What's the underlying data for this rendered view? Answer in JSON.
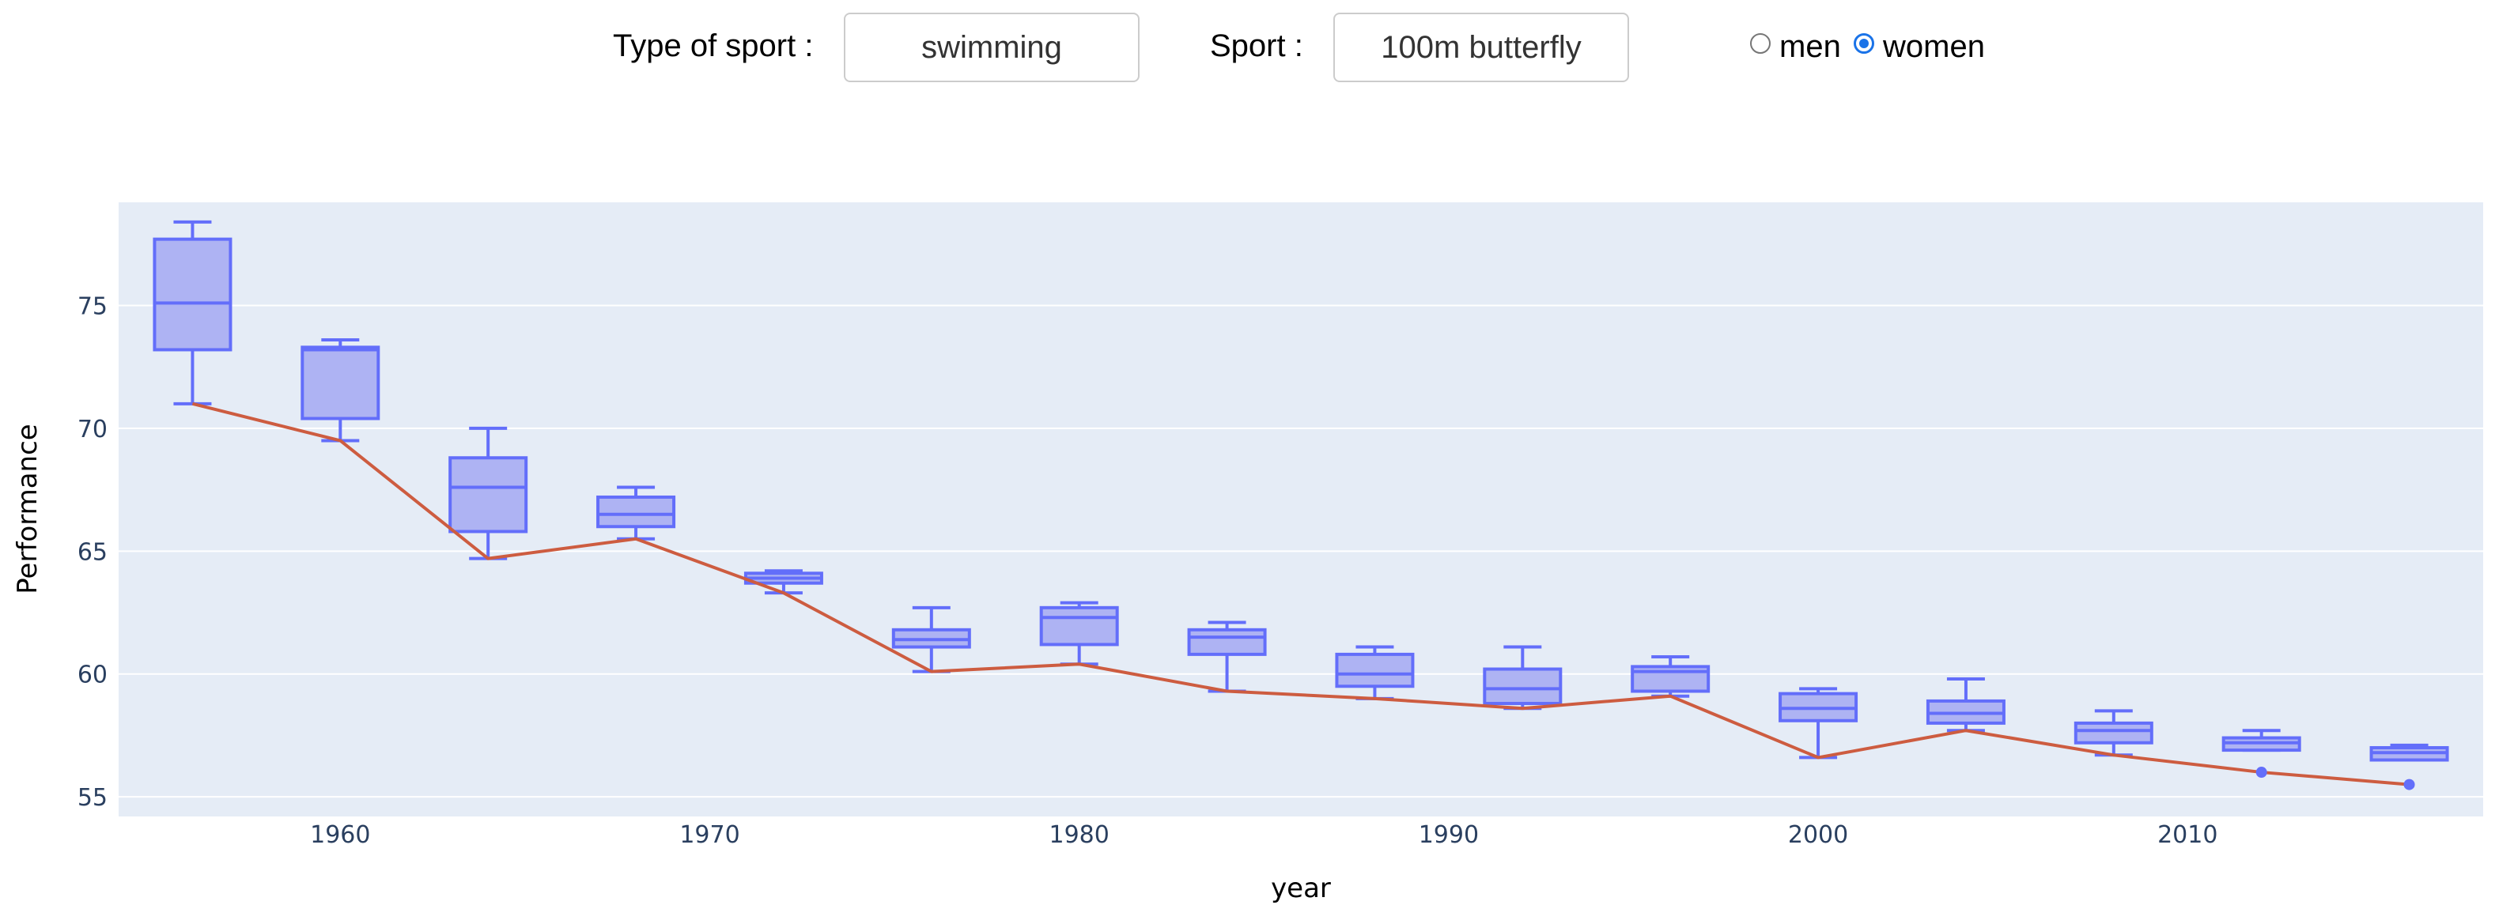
{
  "controls": {
    "type_label": "Type of sport :",
    "type_value": "swimming",
    "sport_label": "Sport :",
    "sport_value": "100m butterfly",
    "gender_options": [
      {
        "label": "men",
        "checked": false
      },
      {
        "label": "women",
        "checked": true
      }
    ]
  },
  "chart_data": {
    "type": "box",
    "xlabel": "year",
    "ylabel": "Performance",
    "xlim": [
      1954,
      2018
    ],
    "ylim": [
      54.2,
      79.2
    ],
    "xticks": [
      1960,
      1970,
      1980,
      1990,
      2000,
      2010
    ],
    "yticks": [
      55,
      60,
      65,
      70,
      75
    ],
    "grid": true,
    "legend": "none",
    "colors": {
      "box_line": "#636efa",
      "box_fill": "#aeb3f3",
      "line": "#cd5c40",
      "plot_bg": "#e5ecf6",
      "grid": "#ffffff",
      "axis_text": "#2a3f5f"
    },
    "boxes": [
      {
        "x": 1956,
        "min": 71.0,
        "q1": 73.2,
        "median": 75.1,
        "q3": 77.7,
        "max": 78.4
      },
      {
        "x": 1960,
        "min": 69.5,
        "q1": 70.4,
        "median": 73.2,
        "q3": 73.3,
        "max": 73.6
      },
      {
        "x": 1964,
        "min": 64.7,
        "q1": 65.8,
        "median": 67.6,
        "q3": 68.8,
        "max": 70.0
      },
      {
        "x": 1968,
        "min": 65.5,
        "q1": 66.0,
        "median": 66.5,
        "q3": 67.2,
        "max": 67.6
      },
      {
        "x": 1972,
        "min": 63.3,
        "q1": 63.7,
        "median": 63.9,
        "q3": 64.1,
        "max": 64.2
      },
      {
        "x": 1976,
        "min": 60.1,
        "q1": 61.1,
        "median": 61.4,
        "q3": 61.8,
        "max": 62.7
      },
      {
        "x": 1980,
        "min": 60.4,
        "q1": 61.2,
        "median": 62.3,
        "q3": 62.7,
        "max": 62.9
      },
      {
        "x": 1984,
        "min": 59.3,
        "q1": 60.8,
        "median": 61.5,
        "q3": 61.8,
        "max": 62.1
      },
      {
        "x": 1988,
        "min": 59.0,
        "q1": 59.5,
        "median": 60.0,
        "q3": 60.8,
        "max": 61.1
      },
      {
        "x": 1992,
        "min": 58.6,
        "q1": 58.8,
        "median": 59.4,
        "q3": 60.2,
        "max": 61.1
      },
      {
        "x": 1996,
        "min": 59.1,
        "q1": 59.3,
        "median": 60.1,
        "q3": 60.3,
        "max": 60.7
      },
      {
        "x": 2000,
        "min": 56.6,
        "q1": 58.1,
        "median": 58.6,
        "q3": 59.2,
        "max": 59.4
      },
      {
        "x": 2004,
        "min": 57.7,
        "q1": 58.0,
        "median": 58.4,
        "q3": 58.9,
        "max": 59.8
      },
      {
        "x": 2008,
        "min": 56.7,
        "q1": 57.2,
        "median": 57.7,
        "q3": 58.0,
        "max": 58.5
      },
      {
        "x": 2012,
        "min": 56.9,
        "q1": 56.9,
        "median": 57.2,
        "q3": 57.4,
        "max": 57.7
      },
      {
        "x": 2016,
        "min": 56.5,
        "q1": 56.5,
        "median": 56.8,
        "q3": 57.0,
        "max": 57.1
      }
    ],
    "outliers": [
      {
        "x": 2012,
        "y": 56.0
      },
      {
        "x": 2016,
        "y": 55.5
      }
    ],
    "line": {
      "x": [
        1956,
        1960,
        1964,
        1968,
        1972,
        1976,
        1980,
        1984,
        1988,
        1992,
        1996,
        2000,
        2004,
        2008,
        2012,
        2016
      ],
      "y": [
        71.0,
        69.5,
        64.7,
        65.5,
        63.3,
        60.1,
        60.4,
        59.3,
        59.0,
        58.6,
        59.1,
        56.6,
        57.7,
        56.7,
        56.0,
        55.5
      ]
    }
  }
}
